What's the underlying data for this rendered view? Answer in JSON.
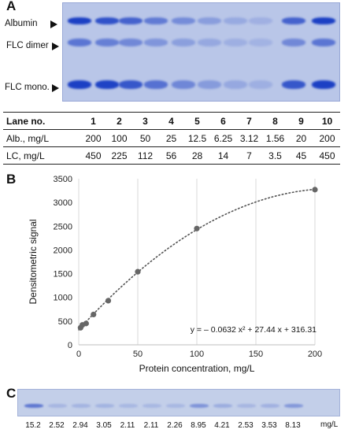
{
  "panel_a": {
    "letter": "A",
    "band_labels": [
      "Albumin",
      "FLC dimer",
      "FLC mono."
    ],
    "lane_intensity": [
      1.0,
      0.85,
      0.7,
      0.5,
      0.35,
      0.2,
      0.1,
      0.05,
      0.7,
      1.0
    ],
    "table": {
      "header": "Lane no.",
      "lanes": [
        "1",
        "2",
        "3",
        "4",
        "5",
        "6",
        "7",
        "8",
        "9",
        "10"
      ],
      "rows": [
        {
          "label": "Alb., mg/L",
          "values": [
            "200",
            "100",
            "50",
            "25",
            "12.5",
            "6.25",
            "3.12",
            "1.56",
            "20",
            "200"
          ]
        },
        {
          "label": "LC, mg/L",
          "values": [
            "450",
            "225",
            "112",
            "56",
            "28",
            "14",
            "7",
            "3.5",
            "45",
            "450"
          ]
        }
      ]
    }
  },
  "panel_b": {
    "letter": "B"
  },
  "panel_c": {
    "letter": "C",
    "values": [
      "15.2",
      "2.52",
      "2.94",
      "3.05",
      "2.11",
      "2.11",
      "2.26",
      "8.95",
      "4.21",
      "2.53",
      "3.53",
      "8.13"
    ],
    "unit": "mg/L"
  },
  "chart_data": {
    "type": "scatter",
    "xlabel": "Protein concentration, mg/L",
    "ylabel": "Densitometric signal",
    "xlim": [
      0,
      200
    ],
    "ylim": [
      0,
      3500
    ],
    "xticks": [
      0,
      50,
      100,
      150,
      200
    ],
    "yticks": [
      0,
      500,
      1000,
      1500,
      2000,
      2500,
      3000,
      3500
    ],
    "grid": "vertical",
    "x": [
      1.56,
      3.12,
      6.25,
      12.5,
      25,
      50,
      100,
      200
    ],
    "y": [
      360,
      420,
      450,
      640,
      930,
      1540,
      2450,
      3270
    ],
    "trendline": {
      "type": "polynomial",
      "coefficients": [
        316.31,
        27.44,
        -0.0632
      ],
      "style": "dotted"
    },
    "equation": "y = – 0.0632 x² + 27.44 x + 316.31",
    "colors": {
      "points": "#666666",
      "trend": "#555555",
      "grid": "#d9d9d9"
    }
  }
}
